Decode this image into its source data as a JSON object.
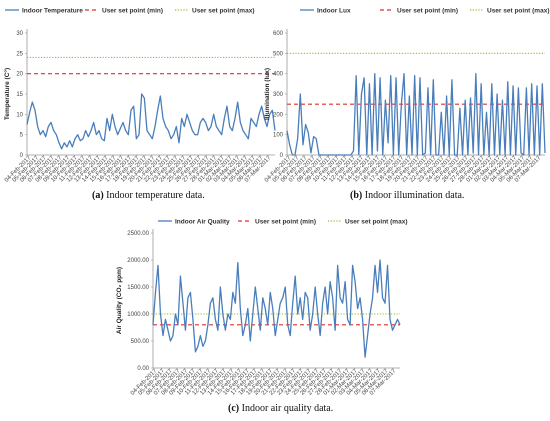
{
  "colors": {
    "series": "#4a7ebb",
    "min": "#e0302a",
    "max": "#9bbb22",
    "axis": "#999999"
  },
  "dates": [
    "04-Feb-2017",
    "05-Feb-2017",
    "06-Feb-2017",
    "07-Feb-2017",
    "08-Feb-2017",
    "09-Feb-2017",
    "10-Feb-2017",
    "11-Feb-2017",
    "12-Feb-2017",
    "13-Feb-2017",
    "14-Feb-2017",
    "15-Feb-2017",
    "16-Feb-2017",
    "17-Feb-2017",
    "18-Feb-2017",
    "19-Feb-2017",
    "20-Feb-2017",
    "21-Feb-2017",
    "22-Feb-2017",
    "23-Feb-2017",
    "24-Feb-2017",
    "25-Feb-2017",
    "26-Feb-2017",
    "27-Feb-2017",
    "28-Feb-2017",
    "01-Mar-2017",
    "02-Mar-2017",
    "03-Mar-2017",
    "04-Mar-2017",
    "05-Mar-2017",
    "06-Mar-2017",
    "07-Mar-2017"
  ],
  "captions": {
    "a": {
      "label": "(a)",
      "text": " Indoor temperature data."
    },
    "b": {
      "label": "(b)",
      "text": " Indoor illumination data."
    },
    "c": {
      "label": "(c)",
      "text": " Indoor air quality data."
    }
  },
  "chart_data": [
    {
      "type": "line",
      "ylabel": "Temperature (C°)",
      "ylim": [
        0,
        30
      ],
      "yticks": [
        "0",
        "5",
        "10",
        "15",
        "20",
        "25",
        "30"
      ],
      "legend": [
        "Indoor Temperature",
        "User set point (min)",
        "User set point (max)"
      ],
      "setpoints": {
        "min": 20,
        "max": 24
      },
      "series": [
        {
          "name": "Indoor Temperature",
          "values": [
            7.5,
            10.5,
            13,
            11,
            7,
            5,
            6,
            4.5,
            7,
            8,
            6,
            5,
            3,
            1.5,
            3,
            2,
            3.5,
            2,
            4,
            5,
            3.5,
            4,
            6,
            4.5,
            6,
            8,
            5,
            6,
            4,
            3.5,
            9,
            6,
            10,
            7,
            5,
            6.5,
            8,
            6,
            5,
            11,
            12,
            4,
            5,
            15,
            14,
            6,
            5,
            4,
            7,
            11,
            14.5,
            9,
            7,
            6,
            4,
            5,
            7,
            3,
            9,
            7,
            10,
            8,
            6,
            5,
            5,
            8,
            9,
            8,
            6,
            7,
            10,
            7,
            6,
            5,
            9,
            12,
            7,
            6,
            9,
            13,
            8,
            6,
            5,
            4,
            9,
            8,
            7,
            10,
            12,
            9,
            7,
            10,
            11,
            6
          ]
        }
      ]
    },
    {
      "type": "line",
      "ylabel": "Illumination (lux)",
      "ylim": [
        0,
        600
      ],
      "yticks": [
        "0",
        "100",
        "200",
        "300",
        "400",
        "500",
        "600"
      ],
      "legend": [
        "Indoor Lux",
        "User set point (min)",
        "User set point (max)"
      ],
      "setpoints": {
        "min": 250,
        "max": 500
      },
      "series": [
        {
          "name": "Indoor Lux",
          "values": [
            120,
            50,
            0,
            0,
            80,
            300,
            50,
            150,
            110,
            10,
            90,
            80,
            0,
            0,
            0,
            0,
            0,
            0,
            0,
            0,
            0,
            0,
            0,
            0,
            0,
            20,
            390,
            0,
            300,
            380,
            0,
            350,
            0,
            400,
            20,
            380,
            0,
            270,
            60,
            390,
            0,
            380,
            0,
            250,
            400,
            0,
            290,
            0,
            390,
            0,
            380,
            0,
            10,
            330,
            0,
            370,
            0,
            0,
            210,
            0,
            290,
            0,
            370,
            0,
            0,
            230,
            0,
            270,
            0,
            280,
            10,
            400,
            0,
            350,
            0,
            210,
            0,
            350,
            0,
            300,
            0,
            270,
            0,
            360,
            0,
            340,
            0,
            330,
            10,
            0,
            330,
            0,
            350,
            0,
            340,
            0,
            350,
            10
          ]
        }
      ]
    },
    {
      "type": "line",
      "ylabel": "Air Quality (CO₂ ppm)",
      "ylim": [
        0,
        2500
      ],
      "yticks": [
        "0.00",
        "500.00",
        "1000.00",
        "1500.00",
        "2000.00",
        "2500.00"
      ],
      "legend": [
        "Indoor Air Quality",
        "User set point (min)",
        "User set point (max)"
      ],
      "setpoints": {
        "min": 800,
        "max": 1000
      },
      "series": [
        {
          "name": "Indoor Air Quality",
          "values": [
            800,
            1400,
            1900,
            1000,
            600,
            900,
            700,
            500,
            600,
            1000,
            800,
            1700,
            1200,
            700,
            1300,
            1400,
            900,
            300,
            400,
            600,
            400,
            500,
            800,
            1200,
            1300,
            900,
            700,
            1500,
            1000,
            700,
            1000,
            900,
            1400,
            1200,
            1950,
            1100,
            600,
            800,
            1100,
            500,
            1000,
            1500,
            1100,
            700,
            1300,
            1100,
            800,
            1400,
            1100,
            600,
            900,
            1200,
            1300,
            1500,
            800,
            600,
            1200,
            1700,
            1000,
            1300,
            900,
            1400,
            1300,
            700,
            1000,
            1500,
            1000,
            600,
            1200,
            1500,
            1000,
            1600,
            1300,
            700,
            1900,
            1300,
            1200,
            1600,
            900,
            800,
            1900,
            1600,
            1100,
            1300,
            900,
            200,
            600,
            1000,
            1300,
            1900,
            1400,
            2000,
            1300,
            1200,
            1900,
            900,
            700,
            800,
            900,
            800
          ]
        }
      ]
    }
  ]
}
